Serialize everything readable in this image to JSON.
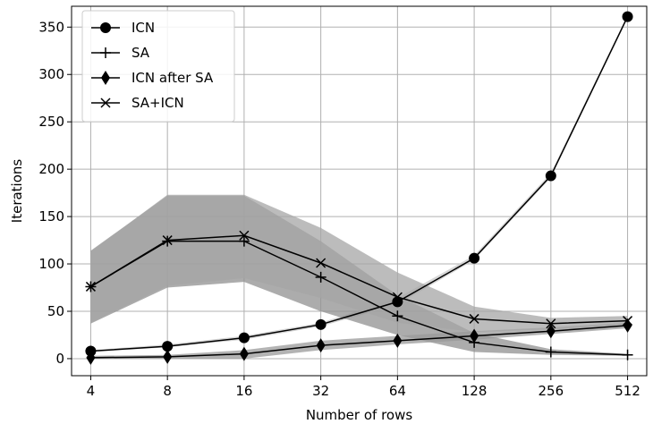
{
  "chart_data": {
    "type": "line",
    "title": "",
    "xlabel": "Number of rows",
    "ylabel": "Iterations",
    "x": [
      4,
      8,
      16,
      32,
      64,
      128,
      256,
      512
    ],
    "x_tick_labels": [
      "4",
      "8",
      "16",
      "32",
      "64",
      "128",
      "256",
      "512"
    ],
    "x_scale": "log2",
    "ylim": [
      -18,
      372
    ],
    "y_ticks": [
      0,
      50,
      100,
      150,
      200,
      250,
      300,
      350
    ],
    "y_tick_labels": [
      "0",
      "50",
      "100",
      "150",
      "200",
      "250",
      "300",
      "350"
    ],
    "grid": true,
    "legend_position": "top-left",
    "series": [
      {
        "name": "ICN",
        "marker": "circle",
        "values": [
          8,
          13,
          22,
          36,
          60,
          106,
          193,
          361
        ],
        "lower": [
          7,
          12,
          20,
          34,
          57,
          104,
          191,
          360
        ],
        "upper": [
          9,
          15,
          24,
          38,
          64,
          109,
          196,
          363
        ]
      },
      {
        "name": "SA",
        "marker": "plus",
        "values": [
          76,
          124,
          124,
          86,
          45,
          17,
          7,
          4
        ],
        "lower": [
          37,
          75,
          81,
          50,
          25,
          7,
          4,
          3
        ],
        "upper": [
          114,
          172,
          172,
          124,
          67,
          27,
          10,
          5
        ]
      },
      {
        "name": "ICN after SA",
        "marker": "diamond",
        "values": [
          1,
          2,
          5,
          14,
          19,
          24,
          29,
          35
        ],
        "lower": [
          0,
          0,
          0,
          9,
          15,
          20,
          26,
          32
        ],
        "upper": [
          3,
          4,
          9,
          19,
          24,
          29,
          33,
          38
        ]
      },
      {
        "name": "SA+ICN",
        "marker": "x",
        "values": [
          76,
          125,
          130,
          101,
          65,
          42,
          37,
          40
        ],
        "lower": [
          38,
          77,
          85,
          64,
          38,
          28,
          31,
          36
        ],
        "upper": [
          113,
          173,
          173,
          138,
          91,
          55,
          43,
          45
        ]
      }
    ],
    "band_colors": [
      "#c8c8c8",
      "#909090",
      "#9a9a9a",
      "#a6a6a6"
    ],
    "line_color": "#000000",
    "grid_color": "#b0b0b0"
  }
}
